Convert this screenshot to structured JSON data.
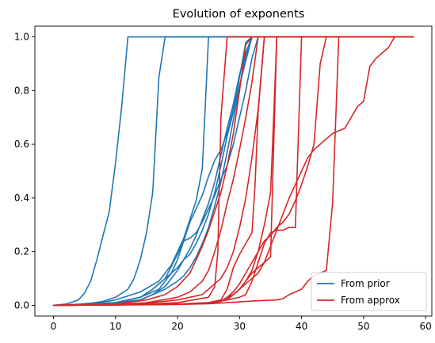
{
  "chart_data": {
    "type": "line",
    "title": "Evolution of exponents",
    "xlabel": "",
    "ylabel": "",
    "xlim": [
      -3,
      61
    ],
    "ylim": [
      -0.04,
      1.04
    ],
    "xticks": [
      0,
      10,
      20,
      30,
      40,
      50,
      60
    ],
    "yticks": [
      0.0,
      0.2,
      0.4,
      0.6,
      0.8,
      1.0
    ],
    "xtick_labels": [
      "0",
      "10",
      "20",
      "30",
      "40",
      "50",
      "60"
    ],
    "ytick_labels": [
      "0.0",
      "0.2",
      "0.4",
      "0.6",
      "0.8",
      "1.0"
    ],
    "grid": false,
    "legend_position": "bottom-right",
    "legend": [
      {
        "label": "From prior",
        "color": "#1f77b4"
      },
      {
        "label": "From approx",
        "color": "#d62728"
      }
    ],
    "series": [
      {
        "group": "From prior",
        "color": "#1f77b4",
        "x": [
          0,
          2,
          3,
          4,
          5,
          6,
          7,
          8,
          9,
          10,
          11,
          12,
          13,
          14,
          15,
          16,
          17,
          18,
          19,
          20,
          21,
          22,
          23,
          24,
          25,
          26,
          27,
          28,
          29,
          30,
          31,
          32,
          33,
          34,
          35,
          36,
          37,
          38,
          39,
          40,
          41,
          42,
          43,
          44,
          45,
          46,
          47,
          48,
          49,
          50,
          51,
          52,
          53,
          54,
          55,
          56,
          57,
          58
        ],
        "y": [
          0,
          0.005,
          0.012,
          0.02,
          0.045,
          0.09,
          0.17,
          0.26,
          0.35,
          0.53,
          0.74,
          1,
          1,
          1,
          1,
          1,
          1,
          1,
          1,
          1,
          1,
          1,
          1,
          1,
          1,
          1,
          1,
          1,
          1,
          1,
          1,
          1,
          1,
          1,
          1,
          1,
          1,
          1,
          1,
          1,
          1,
          1,
          1,
          1,
          1,
          1,
          1,
          1,
          1,
          1,
          1,
          1,
          1,
          1,
          1,
          1,
          1,
          1
        ]
      },
      {
        "group": "From prior",
        "color": "#1f77b4",
        "x": [
          0,
          4,
          6,
          8,
          10,
          12,
          13,
          14,
          15,
          16,
          17,
          18,
          20,
          22,
          25,
          30,
          35,
          40,
          45,
          50,
          55,
          58
        ],
        "y": [
          0,
          0.004,
          0.008,
          0.015,
          0.03,
          0.06,
          0.1,
          0.17,
          0.27,
          0.42,
          0.85,
          1,
          1,
          1,
          1,
          1,
          1,
          1,
          1,
          1,
          1,
          1
        ]
      },
      {
        "group": "From prior",
        "color": "#1f77b4",
        "x": [
          0,
          6,
          10,
          14,
          17,
          19,
          20,
          21,
          22,
          23,
          24,
          25,
          26,
          30,
          35,
          40,
          45,
          50,
          55,
          58
        ],
        "y": [
          0,
          0.004,
          0.02,
          0.05,
          0.09,
          0.15,
          0.2,
          0.25,
          0.32,
          0.39,
          0.51,
          1,
          1,
          1,
          1,
          1,
          1,
          1,
          1,
          1
        ]
      },
      {
        "group": "From prior",
        "color": "#1f77b4",
        "x": [
          0,
          6,
          10,
          14,
          17,
          19,
          20,
          21,
          22,
          23,
          24,
          25,
          26,
          27,
          28,
          29,
          30,
          31,
          32,
          35,
          40,
          45,
          50,
          55,
          58
        ],
        "y": [
          0,
          0.004,
          0.01,
          0.03,
          0.06,
          0.12,
          0.17,
          0.24,
          0.31,
          0.36,
          0.41,
          0.48,
          0.54,
          0.58,
          0.64,
          0.73,
          0.85,
          0.98,
          1,
          1,
          1,
          1,
          1,
          1,
          1
        ]
      },
      {
        "group": "From prior",
        "color": "#1f77b4",
        "x": [
          0,
          6,
          10,
          14,
          16,
          18,
          20,
          21,
          22,
          23,
          24,
          25,
          26,
          27,
          28,
          29,
          30,
          31,
          32,
          33,
          35,
          40,
          45,
          50,
          55,
          58
        ],
        "y": [
          0,
          0.004,
          0.01,
          0.03,
          0.06,
          0.1,
          0.19,
          0.24,
          0.25,
          0.27,
          0.31,
          0.36,
          0.41,
          0.47,
          0.52,
          0.6,
          0.7,
          0.8,
          0.92,
          1,
          1,
          1,
          1,
          1,
          1,
          1
        ]
      },
      {
        "group": "From prior",
        "color": "#1f77b4",
        "x": [
          0,
          6,
          10,
          14,
          16,
          18,
          20,
          21,
          22,
          23,
          24,
          25,
          26,
          27,
          28,
          29,
          30,
          31,
          32,
          33,
          35,
          40,
          45,
          50,
          55,
          58
        ],
        "y": [
          0,
          0.004,
          0.01,
          0.02,
          0.04,
          0.07,
          0.13,
          0.17,
          0.21,
          0.26,
          0.32,
          0.38,
          0.46,
          0.56,
          0.66,
          0.75,
          0.86,
          0.94,
          1,
          1,
          1,
          1,
          1,
          1,
          1,
          1
        ]
      },
      {
        "group": "From prior",
        "color": "#1f77b4",
        "x": [
          0,
          6,
          10,
          14,
          16,
          17,
          18,
          19,
          20,
          21,
          22,
          23,
          24,
          25,
          26,
          27,
          28,
          29,
          30,
          31,
          32,
          35,
          40,
          45,
          50,
          55,
          58
        ],
        "y": [
          0,
          0.004,
          0.01,
          0.03,
          0.06,
          0.08,
          0.1,
          0.12,
          0.14,
          0.17,
          0.19,
          0.23,
          0.28,
          0.34,
          0.42,
          0.52,
          0.63,
          0.72,
          0.82,
          0.91,
          1,
          1,
          1,
          1,
          1,
          1,
          1
        ]
      },
      {
        "group": "From prior",
        "color": "#1f77b4",
        "x": [
          0,
          6,
          10,
          14,
          16,
          18,
          20,
          21,
          22,
          23,
          24,
          25,
          26,
          27,
          28,
          29,
          30,
          31,
          32,
          35,
          40,
          45,
          50,
          55,
          58
        ],
        "y": [
          0,
          0.004,
          0.01,
          0.02,
          0.04,
          0.06,
          0.09,
          0.11,
          0.14,
          0.18,
          0.23,
          0.29,
          0.37,
          0.46,
          0.57,
          0.69,
          0.81,
          0.93,
          1,
          1,
          1,
          1,
          1,
          1,
          1
        ]
      },
      {
        "group": "From approx",
        "color": "#d62728",
        "x": [
          0,
          10,
          15,
          18,
          20,
          22,
          23,
          24,
          25,
          26,
          27,
          28,
          29,
          30,
          31,
          32,
          35,
          40,
          45,
          50,
          55,
          58
        ],
        "y": [
          0,
          0.005,
          0.02,
          0.04,
          0.07,
          0.12,
          0.17,
          0.22,
          0.28,
          0.35,
          0.42,
          0.52,
          0.64,
          0.8,
          0.97,
          1,
          1,
          1,
          1,
          1,
          1,
          1
        ]
      },
      {
        "group": "From approx",
        "color": "#d62728",
        "x": [
          0,
          10,
          15,
          20,
          22,
          24,
          25,
          26,
          27,
          28,
          29,
          30,
          31,
          32,
          33,
          35,
          40,
          45,
          50,
          55,
          58
        ],
        "y": [
          0,
          0.004,
          0.01,
          0.03,
          0.05,
          0.09,
          0.13,
          0.2,
          0.28,
          0.38,
          0.47,
          0.58,
          0.7,
          0.83,
          1,
          1,
          1,
          1,
          1,
          1,
          1
        ]
      },
      {
        "group": "From approx",
        "color": "#d62728",
        "x": [
          0,
          10,
          15,
          20,
          24,
          25,
          26,
          27,
          28,
          29,
          30,
          31,
          32,
          33,
          34,
          35,
          40,
          45,
          50,
          55,
          58
        ],
        "y": [
          0,
          0.003,
          0.008,
          0.02,
          0.04,
          0.06,
          0.08,
          0.1,
          0.14,
          0.2,
          0.29,
          0.4,
          0.55,
          0.73,
          1,
          1,
          1,
          1,
          1,
          1,
          1
        ]
      },
      {
        "group": "From approx",
        "color": "#d62728",
        "x": [
          0,
          10,
          15,
          20,
          25,
          26,
          26.5,
          27,
          28,
          30,
          35,
          40,
          45,
          50,
          55,
          58
        ],
        "y": [
          0,
          0.002,
          0.005,
          0.01,
          0.03,
          0.07,
          0.2,
          0.7,
          1,
          1,
          1,
          1,
          1,
          1,
          1,
          1
        ]
      },
      {
        "group": "From approx",
        "color": "#d62728",
        "x": [
          0,
          10,
          20,
          25,
          27,
          28,
          29,
          30,
          31,
          32,
          32.5,
          33,
          34,
          35,
          40,
          45,
          50,
          55,
          58
        ],
        "y": [
          0,
          0.002,
          0.005,
          0.01,
          0.02,
          0.06,
          0.14,
          0.19,
          0.23,
          0.27,
          0.45,
          0.72,
          1,
          1,
          1,
          1,
          1,
          1,
          1
        ]
      },
      {
        "group": "From approx",
        "color": "#d62728",
        "x": [
          0,
          10,
          20,
          25,
          27,
          29,
          30,
          31,
          32,
          33,
          34,
          35,
          35.5,
          36,
          37,
          40,
          45,
          50,
          55,
          58
        ],
        "y": [
          0,
          0.002,
          0.004,
          0.008,
          0.015,
          0.04,
          0.06,
          0.09,
          0.13,
          0.2,
          0.3,
          0.42,
          0.7,
          1,
          1,
          1,
          1,
          1,
          1,
          1
        ]
      },
      {
        "group": "From approx",
        "color": "#d62728",
        "x": [
          0,
          10,
          20,
          25,
          28,
          29,
          30,
          31,
          32,
          33,
          34,
          35,
          36,
          40,
          45,
          50,
          55,
          58
        ],
        "y": [
          0,
          0.002,
          0.004,
          0.008,
          0.02,
          0.04,
          0.06,
          0.09,
          0.12,
          0.14,
          0.16,
          0.18,
          1,
          1,
          1,
          1,
          1,
          1
        ]
      },
      {
        "group": "From approx",
        "color": "#d62728",
        "x": [
          0,
          10,
          20,
          25,
          27,
          28,
          29,
          30,
          31,
          32,
          33,
          34,
          35,
          36,
          37,
          38,
          39,
          40,
          41,
          42,
          43,
          44,
          45,
          50,
          55,
          58
        ],
        "y": [
          0,
          0.002,
          0.004,
          0.008,
          0.015,
          0.03,
          0.05,
          0.08,
          0.12,
          0.16,
          0.2,
          0.24,
          0.26,
          0.29,
          0.31,
          0.34,
          0.39,
          0.45,
          0.52,
          0.6,
          0.9,
          1,
          1,
          1,
          1,
          1
        ]
      },
      {
        "group": "From approx",
        "color": "#d62728",
        "x": [
          0,
          10,
          20,
          26,
          27,
          28,
          29,
          30,
          31,
          32,
          33,
          34,
          35,
          36,
          37,
          38,
          39,
          40,
          41,
          42,
          43,
          44,
          45,
          46,
          47,
          48,
          49,
          50,
          51,
          52,
          53,
          54,
          55,
          58
        ],
        "y": [
          0,
          0.002,
          0.004,
          0.008,
          0.015,
          0.03,
          0.04,
          0.06,
          0.08,
          0.1,
          0.12,
          0.16,
          0.22,
          0.28,
          0.34,
          0.4,
          0.45,
          0.5,
          0.55,
          0.58,
          0.6,
          0.62,
          0.64,
          0.65,
          0.66,
          0.7,
          0.74,
          0.76,
          0.89,
          0.92,
          0.94,
          0.96,
          1,
          1
        ]
      },
      {
        "group": "From approx",
        "color": "#d62728",
        "x": [
          0,
          10,
          20,
          25,
          28,
          30,
          32,
          34,
          36,
          37,
          38,
          39,
          40,
          41,
          42,
          43,
          44,
          45,
          46,
          47,
          48,
          50,
          55,
          58
        ],
        "y": [
          0,
          0.001,
          0.003,
          0.006,
          0.01,
          0.013,
          0.016,
          0.018,
          0.02,
          0.025,
          0.04,
          0.05,
          0.06,
          0.09,
          0.11,
          0.12,
          0.13,
          0.38,
          1,
          1,
          1,
          1,
          1,
          1
        ]
      },
      {
        "group": "From approx",
        "color": "#d62728",
        "x": [
          0,
          10,
          20,
          25,
          28,
          30,
          31,
          32,
          33,
          34,
          35,
          36,
          37,
          38,
          39,
          40,
          45,
          50,
          55,
          58
        ],
        "y": [
          0,
          0.002,
          0.004,
          0.01,
          0.02,
          0.03,
          0.04,
          0.09,
          0.16,
          0.23,
          0.27,
          0.28,
          0.28,
          0.29,
          0.29,
          1,
          1,
          1,
          1,
          1
        ]
      }
    ]
  }
}
